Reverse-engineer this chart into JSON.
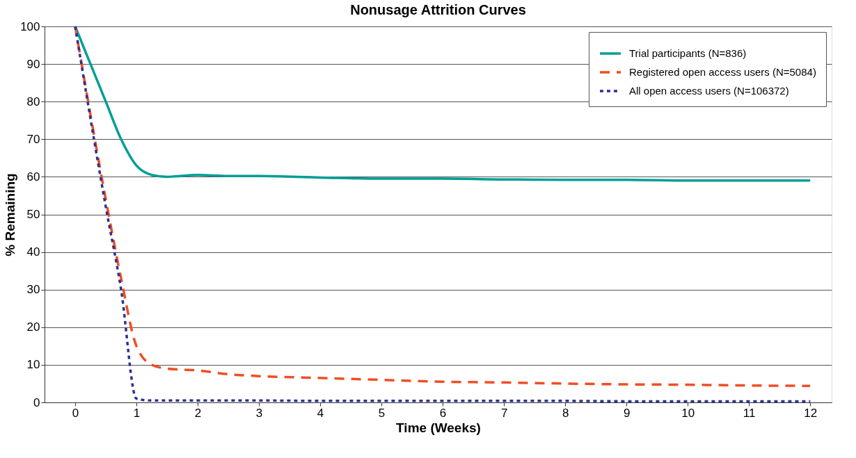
{
  "chart_data": {
    "type": "line",
    "title": "Nonusage Attrition Curves",
    "xlabel": "Time (Weeks)",
    "ylabel": "% Remaining",
    "xlim": [
      -0.5,
      12.35
    ],
    "xticks": [
      0,
      1,
      2,
      3,
      4,
      5,
      6,
      7,
      8,
      9,
      10,
      11,
      12
    ],
    "ylim": [
      0,
      100
    ],
    "yticks": [
      0,
      10,
      20,
      30,
      40,
      50,
      60,
      70,
      80,
      90,
      100
    ],
    "grid": "y",
    "legend": "top right",
    "series": [
      {
        "name": "Trial participants (N=836)",
        "color": "#009e96",
        "line_style": "solid",
        "x": [
          0,
          0.5,
          0.75,
          1,
          1.25,
          1.5,
          2,
          2.5,
          3,
          4,
          5,
          6,
          7,
          8,
          9,
          10,
          11,
          12
        ],
        "values": [
          100,
          80,
          70,
          63,
          60.5,
          60,
          60.5,
          60.2,
          60.2,
          59.8,
          59.5,
          59.5,
          59.3,
          59.2,
          59.2,
          59,
          59,
          59
        ]
      },
      {
        "name": "Registered open access users (N=5084)",
        "color": "#f04e23",
        "line_style": "dashed",
        "x": [
          0,
          0.5,
          0.75,
          1,
          1.25,
          1.5,
          2,
          2.5,
          3,
          4,
          5,
          6,
          7,
          8,
          9,
          10,
          11,
          12
        ],
        "values": [
          100,
          54,
          33,
          15,
          10,
          9,
          8.5,
          7.5,
          7,
          6.5,
          6,
          5.5,
          5.3,
          5,
          4.8,
          4.7,
          4.5,
          4.4
        ]
      },
      {
        "name": "All open access users (N=106372)",
        "color": "#2e3192",
        "line_style": "dotted",
        "x": [
          0,
          0.5,
          0.75,
          1,
          1.25,
          2,
          3,
          4,
          5,
          6,
          7,
          8,
          9,
          10,
          11,
          12
        ],
        "values": [
          100,
          52,
          30,
          1,
          0.5,
          0.5,
          0.5,
          0.4,
          0.4,
          0.4,
          0.4,
          0.4,
          0.3,
          0.3,
          0.3,
          0.3
        ]
      }
    ]
  }
}
